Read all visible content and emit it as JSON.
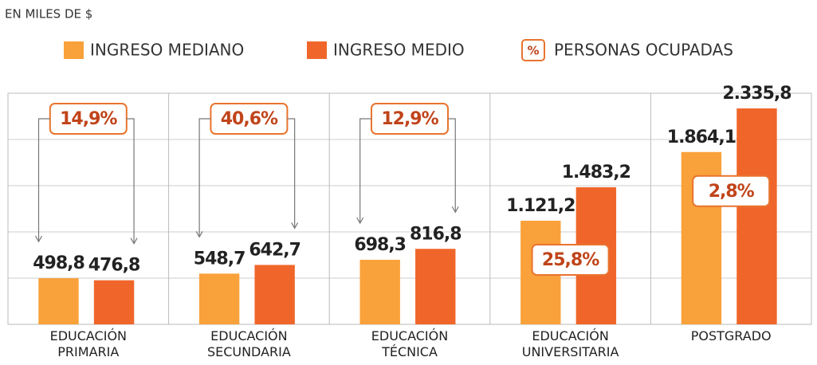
{
  "chart_data": {
    "type": "bar",
    "title": "EN MILES DE $",
    "categories": [
      "EDUCACIÓN PRIMARIA",
      "EDUCACIÓN SECUNDARIA",
      "EDUCACIÓN TÉCNICA",
      "EDUCACIÓN UNIVERSITARIA",
      "POSTGRADO"
    ],
    "series": [
      {
        "name": "INGRESO MEDIANO",
        "color": "#f9a13a",
        "values": [
          498.8,
          548.7,
          698.3,
          1121.2,
          1864.1
        ],
        "value_labels": [
          "498,8",
          "548,7",
          "698,3",
          "1.121,2",
          "1.864,1"
        ]
      },
      {
        "name": "INGRESO MEDIO",
        "color": "#f0662a",
        "values": [
          476.8,
          642.7,
          816.8,
          1483.2,
          2335.8
        ],
        "value_labels": [
          "476,8",
          "642,7",
          "816,8",
          "1.483,2",
          "2.335,8"
        ]
      },
      {
        "name": "PERSONAS OCUPADAS",
        "color": "#e8742f",
        "symbol": "%",
        "values": [
          14.9,
          40.6,
          12.9,
          25.8,
          2.8
        ],
        "value_labels": [
          "14,9%",
          "40,6%",
          "12,9%",
          "25,8%",
          "2,8%"
        ]
      }
    ],
    "ylim": [
      0,
      2500
    ],
    "yticks": [
      0,
      500,
      1000,
      1500,
      2000,
      2500
    ],
    "grid": true
  }
}
